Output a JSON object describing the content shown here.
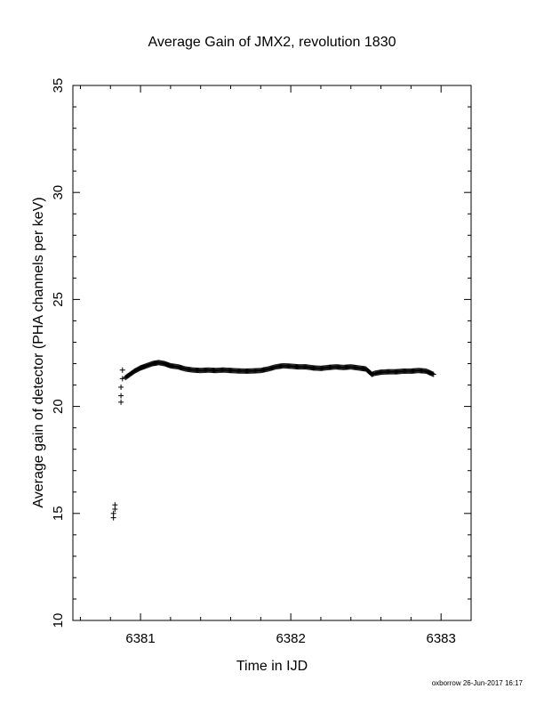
{
  "chart_data": {
    "type": "scatter",
    "title": "Average Gain of JMX2, revolution 1830",
    "xlabel": "Time in IJD",
    "ylabel": "Average gain of detector (PHA channels per keV)",
    "xlim": [
      6380.55,
      6383.2
    ],
    "ylim": [
      10,
      35
    ],
    "x_ticks": [
      "6381",
      "6382",
      "6383"
    ],
    "y_ticks": [
      "10",
      "15",
      "20",
      "25",
      "30",
      "35"
    ],
    "x_tick_values": [
      6381,
      6382,
      6383
    ],
    "y_tick_values": [
      10,
      15,
      20,
      25,
      30,
      35
    ],
    "grid": false,
    "legend": "none",
    "marker": "plus",
    "series": [
      {
        "x": [
          6380.82,
          6380.82,
          6380.83,
          6380.83,
          6380.87,
          6380.87,
          6380.87,
          6380.88,
          6380.88,
          6380.9,
          6380.93,
          6380.96,
          6381.0,
          6381.04,
          6381.08,
          6381.12,
          6381.16,
          6381.2,
          6381.25,
          6381.3,
          6381.35,
          6381.4,
          6381.45,
          6381.5,
          6381.55,
          6381.6,
          6381.65,
          6381.7,
          6381.75,
          6381.8,
          6381.85,
          6381.9,
          6381.95,
          6382.0,
          6382.05,
          6382.1,
          6382.15,
          6382.2,
          6382.25,
          6382.3,
          6382.35,
          6382.4,
          6382.45,
          6382.5,
          6382.54,
          6382.56,
          6382.6,
          6382.65,
          6382.7,
          6382.75,
          6382.8,
          6382.85,
          6382.9,
          6382.95
        ],
        "y": [
          14.8,
          15.0,
          15.2,
          15.4,
          20.2,
          20.5,
          20.9,
          21.3,
          21.7,
          21.35,
          21.5,
          21.65,
          21.8,
          21.9,
          22.0,
          22.05,
          22.0,
          21.9,
          21.85,
          21.75,
          21.7,
          21.68,
          21.7,
          21.68,
          21.7,
          21.68,
          21.66,
          21.65,
          21.66,
          21.68,
          21.75,
          21.85,
          21.9,
          21.88,
          21.85,
          21.85,
          21.8,
          21.78,
          21.82,
          21.85,
          21.82,
          21.85,
          21.8,
          21.75,
          21.5,
          21.55,
          21.6,
          21.62,
          21.62,
          21.65,
          21.65,
          21.68,
          21.65,
          21.5
        ]
      }
    ]
  },
  "footer": "oxborrow 26-Jun-2017 16:17"
}
